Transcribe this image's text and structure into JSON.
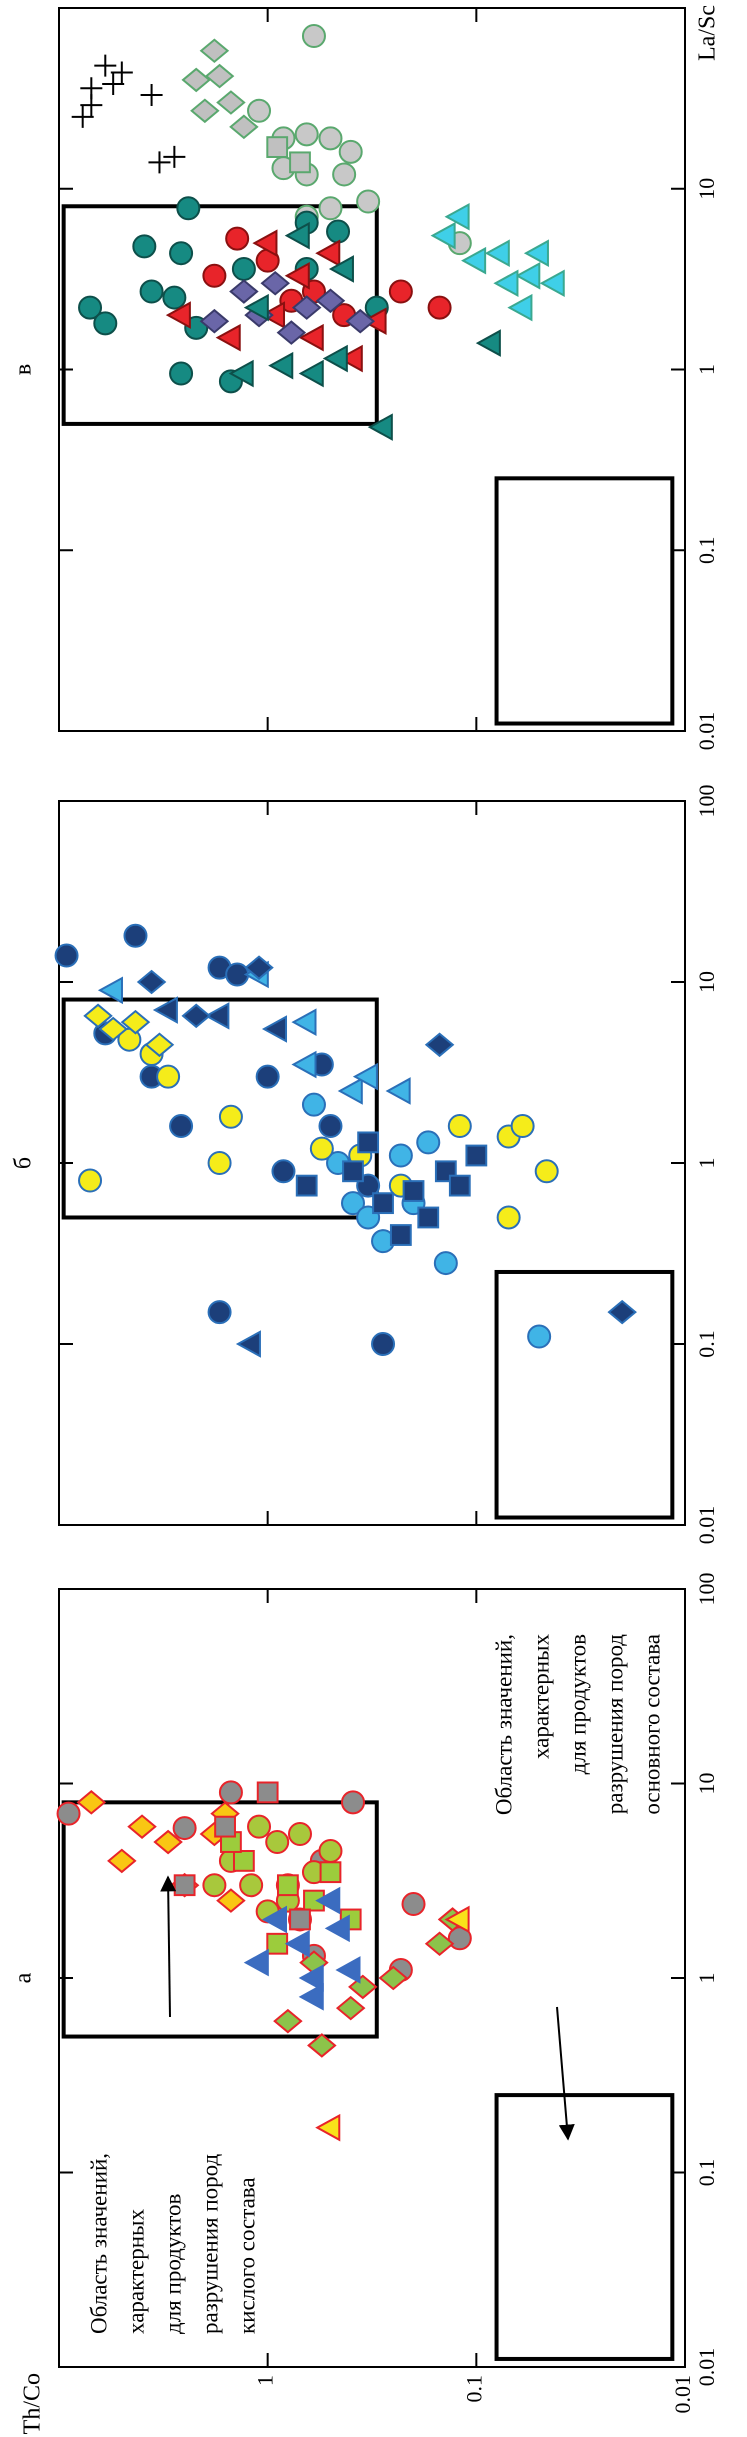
{
  "chart_data": [
    {
      "type": "scatter",
      "title": "а",
      "ylabel": "Th/Co",
      "xscale": "log",
      "yscale": "log",
      "xlim": [
        0.01,
        100
      ],
      "ylim": [
        0.01,
        10
      ],
      "xticks": [
        0.01,
        0.1,
        1,
        10,
        100
      ],
      "yticks": [
        0.01,
        0.1,
        1
      ],
      "ytick_labels": true,
      "regions": [
        {
          "xlim": [
            0.5,
            8
          ],
          "ylim": [
            0.3,
            9.5
          ]
        },
        {
          "xlim": [
            0.011,
            0.25
          ],
          "ylim": [
            0.0115,
            0.08
          ]
        }
      ],
      "annotations": [
        {
          "lines": [
            "Область значений,",
            "характерных",
            "для продуктов",
            "разрушения пород",
            "кислого состава"
          ]
        },
        {
          "lines": [
            "Область значений,",
            "характерных",
            "для продуктов",
            "разрушения пород",
            "основного состава"
          ]
        }
      ],
      "series": [
        {
          "marker": "circle",
          "color": "#8c8c8c",
          "edgecolor": "#e8242a",
          "x": [
            7,
            9,
            1.1,
            2.4,
            1.6,
            4,
            5.9,
            8,
            3,
            1.3
          ],
          "values": [
            9,
            1.5,
            0.23,
            0.2,
            0.12,
            0.55,
            2.5,
            0.39,
            0.8,
            0.6
          ]
        },
        {
          "marker": "circle",
          "color": "#a8c83c",
          "edgecolor": "#e8242a",
          "x": [
            3,
            4,
            5,
            2.5,
            3.5,
            6,
            2,
            4.5,
            3,
            2.2,
            5.5
          ],
          "values": [
            1.2,
            1.5,
            0.9,
            0.8,
            0.6,
            1.1,
            0.7,
            0.5,
            1.8,
            1,
            0.7
          ]
        },
        {
          "marker": "diamond",
          "color": "#f9c613",
          "edgecolor": "#e8242a",
          "x": [
            8,
            6,
            5,
            4,
            3,
            7,
            2.5,
            5.5
          ],
          "values": [
            7,
            4,
            3,
            5,
            2.5,
            1.6,
            1.5,
            1.8
          ]
        },
        {
          "marker": "diamond",
          "color": "#8cc34a",
          "edgecolor": "#e8242a",
          "x": [
            0.6,
            0.45,
            0.7,
            1,
            1.5,
            2,
            1.2,
            0.9
          ],
          "values": [
            0.8,
            0.55,
            0.4,
            0.25,
            0.15,
            0.13,
            0.6,
            0.35
          ]
        },
        {
          "marker": "square",
          "color": "#9ccc3c",
          "edgecolor": "#e8242a",
          "x": [
            4,
            3,
            2,
            2.5,
            1.5,
            3.5,
            5
          ],
          "values": [
            1.3,
            0.8,
            0.4,
            0.6,
            0.9,
            0.5,
            1.5
          ]
        },
        {
          "marker": "square",
          "color": "#8c8c8c",
          "edgecolor": "#e8242a",
          "x": [
            9,
            6,
            3,
            2
          ],
          "values": [
            1,
            1.6,
            2.5,
            0.7
          ]
        },
        {
          "marker": "triangle",
          "color": "#3b6cc0",
          "edgecolor": "#3b6cc0",
          "x": [
            1,
            1.5,
            2,
            1.2,
            0.8,
            2.5,
            1.8,
            1.1
          ],
          "values": [
            0.6,
            0.7,
            0.9,
            1.1,
            0.6,
            0.5,
            0.45,
            0.4
          ]
        },
        {
          "marker": "triangle",
          "color": "#f9e21a",
          "edgecolor": "#e8242a",
          "x": [
            0.17,
            2
          ],
          "values": [
            0.5,
            0.12
          ]
        }
      ]
    },
    {
      "type": "scatter",
      "title": "б",
      "xscale": "log",
      "yscale": "log",
      "xlim": [
        0.01,
        100
      ],
      "ylim": [
        0.01,
        10
      ],
      "xticks": [
        0.01,
        0.1,
        1,
        10,
        100
      ],
      "yticks": [
        0.01,
        0.1,
        1
      ],
      "ytick_labels": false,
      "regions": [
        {
          "xlim": [
            0.5,
            8
          ],
          "ylim": [
            0.3,
            9.5
          ]
        },
        {
          "xlim": [
            0.011,
            0.25
          ],
          "ylim": [
            0.0115,
            0.08
          ]
        }
      ],
      "series": [
        {
          "marker": "circle",
          "color": "#1c3f7a",
          "edgecolor": "#2a6fb8",
          "x": [
            14,
            18,
            12,
            11,
            5.2,
            3,
            1.6,
            0.9,
            1.6,
            0.1,
            0.15,
            3.5,
            3,
            0.75
          ],
          "values": [
            9.2,
            4.3,
            1.7,
            1.4,
            6,
            3.6,
            2.6,
            0.84,
            0.5,
            0.28,
            1.7,
            0.55,
            1,
            0.33
          ]
        },
        {
          "marker": "circle",
          "color": "#40b4e6",
          "edgecolor": "#2a6fb8",
          "x": [
            0.28,
            0.11,
            0.6,
            0.37,
            1,
            1.1,
            1.3,
            2.1,
            0.6,
            0.5
          ],
          "values": [
            0.14,
            0.05,
            0.39,
            0.28,
            0.46,
            0.23,
            0.17,
            0.6,
            0.2,
            0.33
          ]
        },
        {
          "marker": "circle",
          "color": "#f5ec1a",
          "edgecolor": "#2a6fb8",
          "x": [
            0.8,
            1,
            1.8,
            1.2,
            1.1,
            1.6,
            1.4,
            1.6,
            0.9,
            0.5,
            0.75,
            4.8,
            4,
            3
          ],
          "values": [
            7.1,
            1.7,
            1.5,
            0.55,
            0.36,
            0.12,
            0.07,
            0.06,
            0.046,
            0.07,
            0.23,
            4.6,
            3.6,
            3
          ]
        },
        {
          "marker": "square",
          "color": "#1c3f7a",
          "edgecolor": "#2a6fb8",
          "x": [
            0.9,
            0.6,
            0.7,
            0.9,
            1.1,
            1.3,
            0.4,
            0.5,
            0.75,
            0.75
          ],
          "values": [
            0.39,
            0.28,
            0.2,
            0.14,
            0.1,
            0.33,
            0.23,
            0.17,
            0.12,
            0.65
          ]
        },
        {
          "marker": "triangle",
          "color": "#40b4e6",
          "edgecolor": "#2a6fb8",
          "x": [
            9,
            6,
            11,
            2.5,
            2.5,
            3.5,
            3
          ],
          "values": [
            5.5,
            0.65,
            1.1,
            0.39,
            0.23,
            0.65,
            0.33
          ]
        },
        {
          "marker": "triangle",
          "color": "#1c3f7a",
          "edgecolor": "#2a6fb8",
          "x": [
            0.1,
            7,
            6.5,
            5.5
          ],
          "values": [
            1.2,
            3,
            1.7,
            0.9
          ]
        },
        {
          "marker": "diamond",
          "color": "#1c3f7a",
          "edgecolor": "#2a6fb8",
          "x": [
            12,
            10,
            4.5,
            0.15,
            6.5
          ],
          "values": [
            1.1,
            3.6,
            0.15,
            0.02,
            2.2
          ]
        },
        {
          "marker": "diamond",
          "color": "#f5ec1a",
          "edgecolor": "#2a6fb8",
          "x": [
            6.5,
            6,
            4.5,
            5.5
          ],
          "values": [
            6.5,
            4.3,
            3.3,
            5.5
          ]
        }
      ]
    },
    {
      "type": "scatter",
      "title": "в",
      "xlabel": "La/Sc",
      "xscale": "log",
      "yscale": "log",
      "xlim": [
        0.01,
        100
      ],
      "ylim": [
        0.01,
        10
      ],
      "xticks": [
        0.01,
        0.1,
        1,
        10
      ],
      "yticks": [
        0.01,
        0.1,
        1
      ],
      "ytick_labels": false,
      "regions": [
        {
          "xlim": [
            0.5,
            8
          ],
          "ylim": [
            0.3,
            9.5
          ]
        },
        {
          "xlim": [
            0.011,
            0.25
          ],
          "ylim": [
            0.0115,
            0.08
          ]
        }
      ],
      "series": [
        {
          "marker": "plus",
          "color": "#000000",
          "edgecolor": "#000000",
          "x": [
            25,
            36,
            48,
            44,
            33,
            14,
            15,
            29,
            38
          ],
          "values": [
            7.7,
            7,
            6,
            5,
            3.6,
            3.3,
            2.8,
            7,
            5.5
          ]
        },
        {
          "marker": "diamond",
          "color": "#c0c0c0",
          "edgecolor": "#5aa86e",
          "x": [
            58,
            40,
            30,
            22,
            27,
            42
          ],
          "values": [
            1.8,
            2.2,
            1.5,
            1.3,
            2,
            1.7
          ]
        },
        {
          "marker": "circle",
          "color": "#c8c8c8",
          "edgecolor": "#5aa86e",
          "x": [
            70,
            27,
            19,
            20,
            19,
            13,
            12,
            12,
            8.5,
            7.8,
            7,
            5,
            16
          ],
          "values": [
            0.6,
            1.1,
            0.84,
            0.65,
            0.5,
            0.84,
            0.65,
            0.43,
            0.33,
            0.5,
            0.65,
            0.12,
            0.4
          ]
        },
        {
          "marker": "square",
          "color": "#c0c0c0",
          "edgecolor": "#5aa86e",
          "x": [
            17,
            14
          ],
          "values": [
            0.9,
            0.7
          ]
        },
        {
          "marker": "triangle",
          "color": "#3fcfe8",
          "edgecolor": "#3aa890",
          "x": [
            7,
            4.4,
            3.3,
            2.2,
            3,
            4.4,
            4,
            5.5,
            3
          ],
          "values": [
            0.12,
            0.077,
            0.055,
            0.06,
            0.042,
            0.05,
            0.1,
            0.14,
            0.07
          ]
        },
        {
          "marker": "circle",
          "color": "#168a82",
          "edgecolor": "#0d4f4a",
          "x": [
            2.2,
            1.8,
            2.7,
            4.4,
            2.5,
            1.7,
            0.86,
            0.95,
            7.8,
            4.8,
            3.6,
            3.6,
            5.8,
            2.2,
            6.5
          ],
          "values": [
            7.1,
            6,
            3.6,
            2.6,
            2.8,
            2.2,
            1.5,
            2.6,
            2.4,
            3.9,
            1.3,
            0.65,
            0.46,
            0.3,
            0.65
          ]
        },
        {
          "marker": "circle",
          "color": "#e8242a",
          "edgecolor": "#8a1010",
          "x": [
            5.3,
            4,
            2.7,
            2.7,
            2.2,
            2,
            2.4,
            3.3
          ],
          "values": [
            1.4,
            1,
            0.6,
            0.23,
            0.15,
            0.43,
            0.77,
            1.8
          ]
        },
        {
          "marker": "triangle",
          "color": "#e8242a",
          "edgecolor": "#8a1010",
          "x": [
            2,
            1.5,
            5,
            3.3,
            4.4,
            1.15,
            1.5,
            1.85,
            2
          ],
          "values": [
            2.6,
            1.5,
            1,
            0.7,
            0.5,
            0.39,
            0.6,
            0.3,
            0.92
          ]
        },
        {
          "marker": "diamond",
          "color": "#6a66a8",
          "edgecolor": "#3a3a6a",
          "x": [
            2.7,
            3,
            2.2,
            2.4,
            1.85,
            1.85,
            1.6,
            2
          ],
          "values": [
            1.3,
            0.92,
            0.65,
            0.5,
            0.36,
            1.8,
            0.77,
            1.1
          ]
        },
        {
          "marker": "triangle",
          "color": "#168a82",
          "edgecolor": "#0d4f4a",
          "x": [
            0.48,
            1.4,
            1.05,
            0.95,
            1.15,
            2.2,
            5.5,
            3.6,
            0.95
          ],
          "values": [
            0.28,
            0.085,
            0.84,
            0.6,
            0.46,
            1.1,
            0.7,
            0.43,
            1.3
          ]
        }
      ]
    }
  ]
}
